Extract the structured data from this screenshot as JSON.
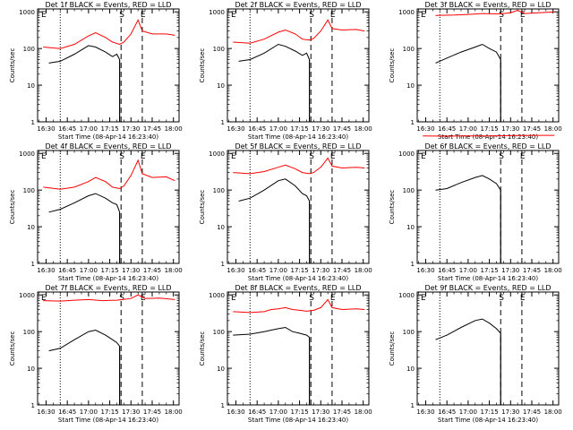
{
  "page": {
    "background": "#ffffff",
    "axis_color": "#000000",
    "events_color": "#000000",
    "lld_color": "#ff0000"
  },
  "x_axis": {
    "tick_labels": [
      "16:30",
      "16:45",
      "17:00",
      "17:15",
      "17:30",
      "17:45",
      "18:00"
    ],
    "tick_minutes": [
      0,
      15,
      30,
      45,
      60,
      75,
      90
    ],
    "label": "Start Time (08-Apr-14 16:23:40)"
  },
  "y_axis": {
    "label": "Counts/sec",
    "scale": "log",
    "tick_labels": [
      "1",
      "10",
      "100",
      "1000"
    ],
    "tick_values": [
      1,
      10,
      100,
      1000
    ]
  },
  "markers": {
    "s_label": "S",
    "e_label": "E",
    "dotted_line_time": "16:40",
    "dashed_s_time": "17:23",
    "dashed_e_time": "17:38"
  },
  "chart_data": [
    {
      "type": "line",
      "title": "Det 1f BLACK = Events, RED = LLD",
      "xlabel": "Start Time (08-Apr-14 16:23:40)",
      "ylabel": "Counts/sec",
      "x_range": [
        "16:24",
        "18:04"
      ],
      "ylim": [
        1,
        1200
      ],
      "yscale": "log",
      "series": [
        {
          "name": "Events",
          "color": "#000000",
          "x": [
            "16:32",
            "16:40",
            "16:50",
            "17:00",
            "17:05",
            "17:12",
            "17:17",
            "17:20",
            "17:22"
          ],
          "values": [
            40,
            45,
            70,
            120,
            110,
            80,
            60,
            70,
            50
          ]
        },
        {
          "name": "LLD",
          "color": "#ff0000",
          "x": [
            "16:28",
            "16:40",
            "16:50",
            "17:00",
            "17:05",
            "17:12",
            "17:17",
            "17:22",
            "17:25",
            "17:30",
            "17:35",
            "17:38",
            "17:45",
            "17:55",
            "18:01"
          ],
          "values": [
            110,
            100,
            130,
            220,
            270,
            200,
            150,
            130,
            150,
            250,
            600,
            300,
            250,
            250,
            230
          ]
        }
      ]
    },
    {
      "type": "line",
      "title": "Det 2f BLACK = Events, RED = LLD",
      "xlabel": "Start Time (08-Apr-14 16:23:40)",
      "ylabel": "Counts/sec",
      "x_range": [
        "16:24",
        "18:04"
      ],
      "ylim": [
        1,
        1200
      ],
      "yscale": "log",
      "series": [
        {
          "name": "Events",
          "color": "#000000",
          "x": [
            "16:32",
            "16:40",
            "16:50",
            "17:00",
            "17:05",
            "17:12",
            "17:17",
            "17:20",
            "17:22"
          ],
          "values": [
            45,
            50,
            75,
            130,
            115,
            85,
            65,
            75,
            50
          ]
        },
        {
          "name": "LLD",
          "color": "#ff0000",
          "x": [
            "16:28",
            "16:40",
            "16:50",
            "17:00",
            "17:05",
            "17:12",
            "17:17",
            "17:22",
            "17:25",
            "17:30",
            "17:35",
            "17:38",
            "17:45",
            "17:55",
            "18:01"
          ],
          "values": [
            150,
            140,
            180,
            280,
            320,
            250,
            180,
            170,
            190,
            300,
            600,
            350,
            320,
            330,
            300
          ]
        }
      ]
    },
    {
      "type": "line",
      "title": "Det 3f BLACK = Events, RED = LLD",
      "xlabel": "Start Time (08-Apr-14 16:23:40)",
      "ylabel": "Counts/sec",
      "x_range": [
        "16:24",
        "18:04"
      ],
      "ylim": [
        1,
        1200
      ],
      "yscale": "log",
      "series": [
        {
          "name": "Events",
          "color": "#000000",
          "x": [
            "16:37",
            "16:45",
            "16:55",
            "17:05",
            "17:10",
            "17:15",
            "17:20",
            "17:23"
          ],
          "values": [
            40,
            55,
            80,
            110,
            130,
            100,
            80,
            50
          ]
        },
        {
          "name": "LLD",
          "color": "#ff0000",
          "x": [
            "16:37",
            "16:50",
            "17:00",
            "17:10",
            "17:20",
            "17:25",
            "17:30",
            "17:35",
            "17:40",
            "17:50",
            "18:01"
          ],
          "values": [
            800,
            820,
            850,
            900,
            880,
            900,
            950,
            1100,
            900,
            950,
            1000
          ]
        }
      ]
    },
    {
      "type": "line",
      "title": "Det 4f BLACK = Events, RED = LLD",
      "xlabel": "Start Time (08-Apr-14 16:23:40)",
      "ylabel": "Counts/sec",
      "x_range": [
        "16:24",
        "18:04"
      ],
      "ylim": [
        1,
        1200
      ],
      "yscale": "log",
      "series": [
        {
          "name": "Events",
          "color": "#000000",
          "x": [
            "16:32",
            "16:40",
            "16:50",
            "17:00",
            "17:05",
            "17:12",
            "17:17",
            "17:20",
            "17:22"
          ],
          "values": [
            25,
            30,
            45,
            70,
            80,
            60,
            45,
            40,
            25
          ]
        },
        {
          "name": "LLD",
          "color": "#ff0000",
          "x": [
            "16:28",
            "16:40",
            "16:50",
            "17:00",
            "17:05",
            "17:12",
            "17:17",
            "17:22",
            "17:25",
            "17:30",
            "17:35",
            "17:38",
            "17:45",
            "17:55",
            "18:01"
          ],
          "values": [
            120,
            105,
            120,
            170,
            220,
            170,
            120,
            110,
            130,
            250,
            650,
            280,
            220,
            230,
            180
          ]
        }
      ]
    },
    {
      "type": "line",
      "title": "Det 5f BLACK = Events, RED = LLD",
      "xlabel": "Start Time (08-Apr-14 16:23:40)",
      "ylabel": "Counts/sec",
      "x_range": [
        "16:24",
        "18:04"
      ],
      "ylim": [
        1,
        1200
      ],
      "yscale": "log",
      "series": [
        {
          "name": "Events",
          "color": "#000000",
          "x": [
            "16:32",
            "16:40",
            "16:50",
            "17:00",
            "17:05",
            "17:12",
            "17:17",
            "17:20",
            "17:22"
          ],
          "values": [
            50,
            60,
            100,
            180,
            200,
            130,
            80,
            70,
            50
          ]
        },
        {
          "name": "LLD",
          "color": "#ff0000",
          "x": [
            "16:28",
            "16:40",
            "16:50",
            "17:00",
            "17:05",
            "17:12",
            "17:17",
            "17:22",
            "17:25",
            "17:30",
            "17:35",
            "17:38",
            "17:45",
            "17:55",
            "18:01"
          ],
          "values": [
            300,
            280,
            320,
            420,
            480,
            380,
            300,
            280,
            300,
            420,
            750,
            450,
            400,
            420,
            400
          ]
        }
      ]
    },
    {
      "type": "line",
      "title": "Det 6f BLACK = Events, RED = LLD",
      "xlabel": "Start Time (08-Apr-14 16:23:40)",
      "ylabel": "Counts/sec",
      "x_range": [
        "16:24",
        "18:04"
      ],
      "ylim": [
        1,
        1200
      ],
      "yscale": "log",
      "series": [
        {
          "name": "Events",
          "color": "#000000",
          "x": [
            "16:37",
            "16:45",
            "16:55",
            "17:05",
            "17:10",
            "17:15",
            "17:20",
            "17:23"
          ],
          "values": [
            100,
            110,
            160,
            220,
            250,
            200,
            150,
            100
          ]
        },
        {
          "name": "LLD",
          "color": "#ff0000",
          "x": [
            "16:28",
            "16:45",
            "17:00",
            "17:15",
            "17:30",
            "17:45",
            "18:01"
          ],
          "values": [
            3000,
            2950,
            3000,
            3000,
            3050,
            3100,
            3100
          ]
        }
      ]
    },
    {
      "type": "line",
      "title": "Det 7f BLACK = Events, RED = LLD",
      "xlabel": "Start Time (08-Apr-14 16:23:40)",
      "ylabel": "Counts/sec",
      "x_range": [
        "16:24",
        "18:04"
      ],
      "ylim": [
        1,
        1200
      ],
      "yscale": "log",
      "series": [
        {
          "name": "Events",
          "color": "#000000",
          "x": [
            "16:32",
            "16:40",
            "16:50",
            "17:00",
            "17:05",
            "17:12",
            "17:17",
            "17:20",
            "17:22"
          ],
          "values": [
            30,
            35,
            60,
            100,
            110,
            80,
            60,
            50,
            40
          ]
        },
        {
          "name": "LLD",
          "color": "#ff0000",
          "x": [
            "16:28",
            "16:40",
            "16:50",
            "17:00",
            "17:10",
            "17:20",
            "17:30",
            "17:35",
            "17:40",
            "17:50",
            "18:01"
          ],
          "values": [
            700,
            680,
            720,
            750,
            700,
            720,
            800,
            1000,
            800,
            820,
            750
          ]
        }
      ]
    },
    {
      "type": "line",
      "title": "Det 8f BLACK = Events, RED = LLD",
      "xlabel": "Start Time (08-Apr-14 16:23:40)",
      "ylabel": "Counts/sec",
      "x_range": [
        "16:24",
        "18:04"
      ],
      "ylim": [
        1,
        1200
      ],
      "yscale": "log",
      "series": [
        {
          "name": "Events",
          "color": "#000000",
          "x": [
            "16:28",
            "16:40",
            "16:50",
            "16:55",
            "17:00",
            "17:05",
            "17:10",
            "17:15",
            "17:20",
            "17:22"
          ],
          "values": [
            80,
            85,
            100,
            110,
            120,
            130,
            100,
            90,
            80,
            70
          ]
        },
        {
          "name": "LLD",
          "color": "#ff0000",
          "x": [
            "16:28",
            "16:40",
            "16:50",
            "16:55",
            "17:00",
            "17:05",
            "17:10",
            "17:15",
            "17:20",
            "17:25",
            "17:30",
            "17:35",
            "17:38",
            "17:45",
            "17:55",
            "18:01"
          ],
          "values": [
            350,
            330,
            350,
            400,
            420,
            450,
            400,
            380,
            360,
            380,
            450,
            750,
            450,
            400,
            420,
            400
          ]
        }
      ]
    },
    {
      "type": "line",
      "title": "Det 9f BLACK = Events, RED = LLD",
      "xlabel": "Start Time (08-Apr-14 16:23:40)",
      "ylabel": "Counts/sec",
      "x_range": [
        "16:24",
        "18:04"
      ],
      "ylim": [
        1,
        1200
      ],
      "yscale": "log",
      "series": [
        {
          "name": "Events",
          "color": "#000000",
          "x": [
            "16:37",
            "16:45",
            "16:55",
            "17:05",
            "17:10",
            "17:15",
            "17:20",
            "17:23"
          ],
          "values": [
            60,
            80,
            130,
            200,
            220,
            170,
            120,
            90
          ]
        }
      ]
    }
  ]
}
